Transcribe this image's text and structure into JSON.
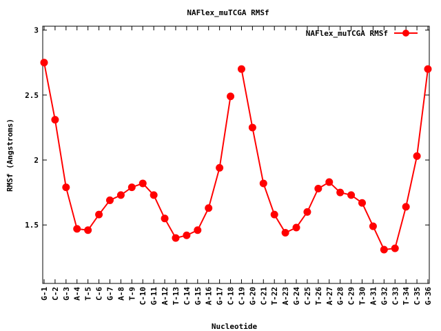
{
  "chart_data": {
    "type": "line",
    "title": "NAFlex_muTCGA RMSf",
    "xlabel": "Nucleotide",
    "ylabel": "RMSf (Angstroms)",
    "ylim": [
      1.05,
      3.03
    ],
    "yticks": [
      1.5,
      2,
      2.5,
      3
    ],
    "ytick_labels": [
      "1.5",
      "2",
      "2.5",
      "3"
    ],
    "legend_position": "top-right",
    "grid": false,
    "color": "#ff0000",
    "categories": [
      "G-1",
      "C-2",
      "G-3",
      "A-4",
      "T-5",
      "C-6",
      "G-7",
      "A-8",
      "T-9",
      "C-10",
      "G-11",
      "A-12",
      "T-13",
      "C-14",
      "G-15",
      "A-16",
      "G-17",
      "C-18",
      "C-19",
      "G-20",
      "C-21",
      "T-22",
      "A-23",
      "G-24",
      "C-25",
      "T-26",
      "A-27",
      "G-28",
      "C-29",
      "T-30",
      "A-31",
      "G-32",
      "C-33",
      "T-34",
      "C-35",
      "G-36"
    ],
    "series": [
      {
        "name": "NAFlex_muTCGA RMSf",
        "segments": [
          {
            "x": [
              1,
              2,
              3,
              4,
              5,
              6,
              7,
              8,
              9,
              10,
              11,
              12,
              13,
              14,
              15,
              16,
              17,
              18
            ],
            "values": [
              2.75,
              2.31,
              1.79,
              1.47,
              1.46,
              1.58,
              1.69,
              1.73,
              1.79,
              1.82,
              1.73,
              1.55,
              1.4,
              1.42,
              1.46,
              1.63,
              1.94,
              2.49
            ]
          },
          {
            "x": [
              19,
              20,
              21,
              22,
              23,
              24,
              25,
              26,
              27,
              28,
              29,
              30,
              31,
              32,
              33,
              34,
              35,
              36
            ],
            "values": [
              2.7,
              2.25,
              1.82,
              1.58,
              1.44,
              1.48,
              1.6,
              1.78,
              1.83,
              1.75,
              1.73,
              1.67,
              1.49,
              1.31,
              1.32,
              1.64,
              2.03,
              2.7
            ]
          }
        ]
      }
    ]
  }
}
